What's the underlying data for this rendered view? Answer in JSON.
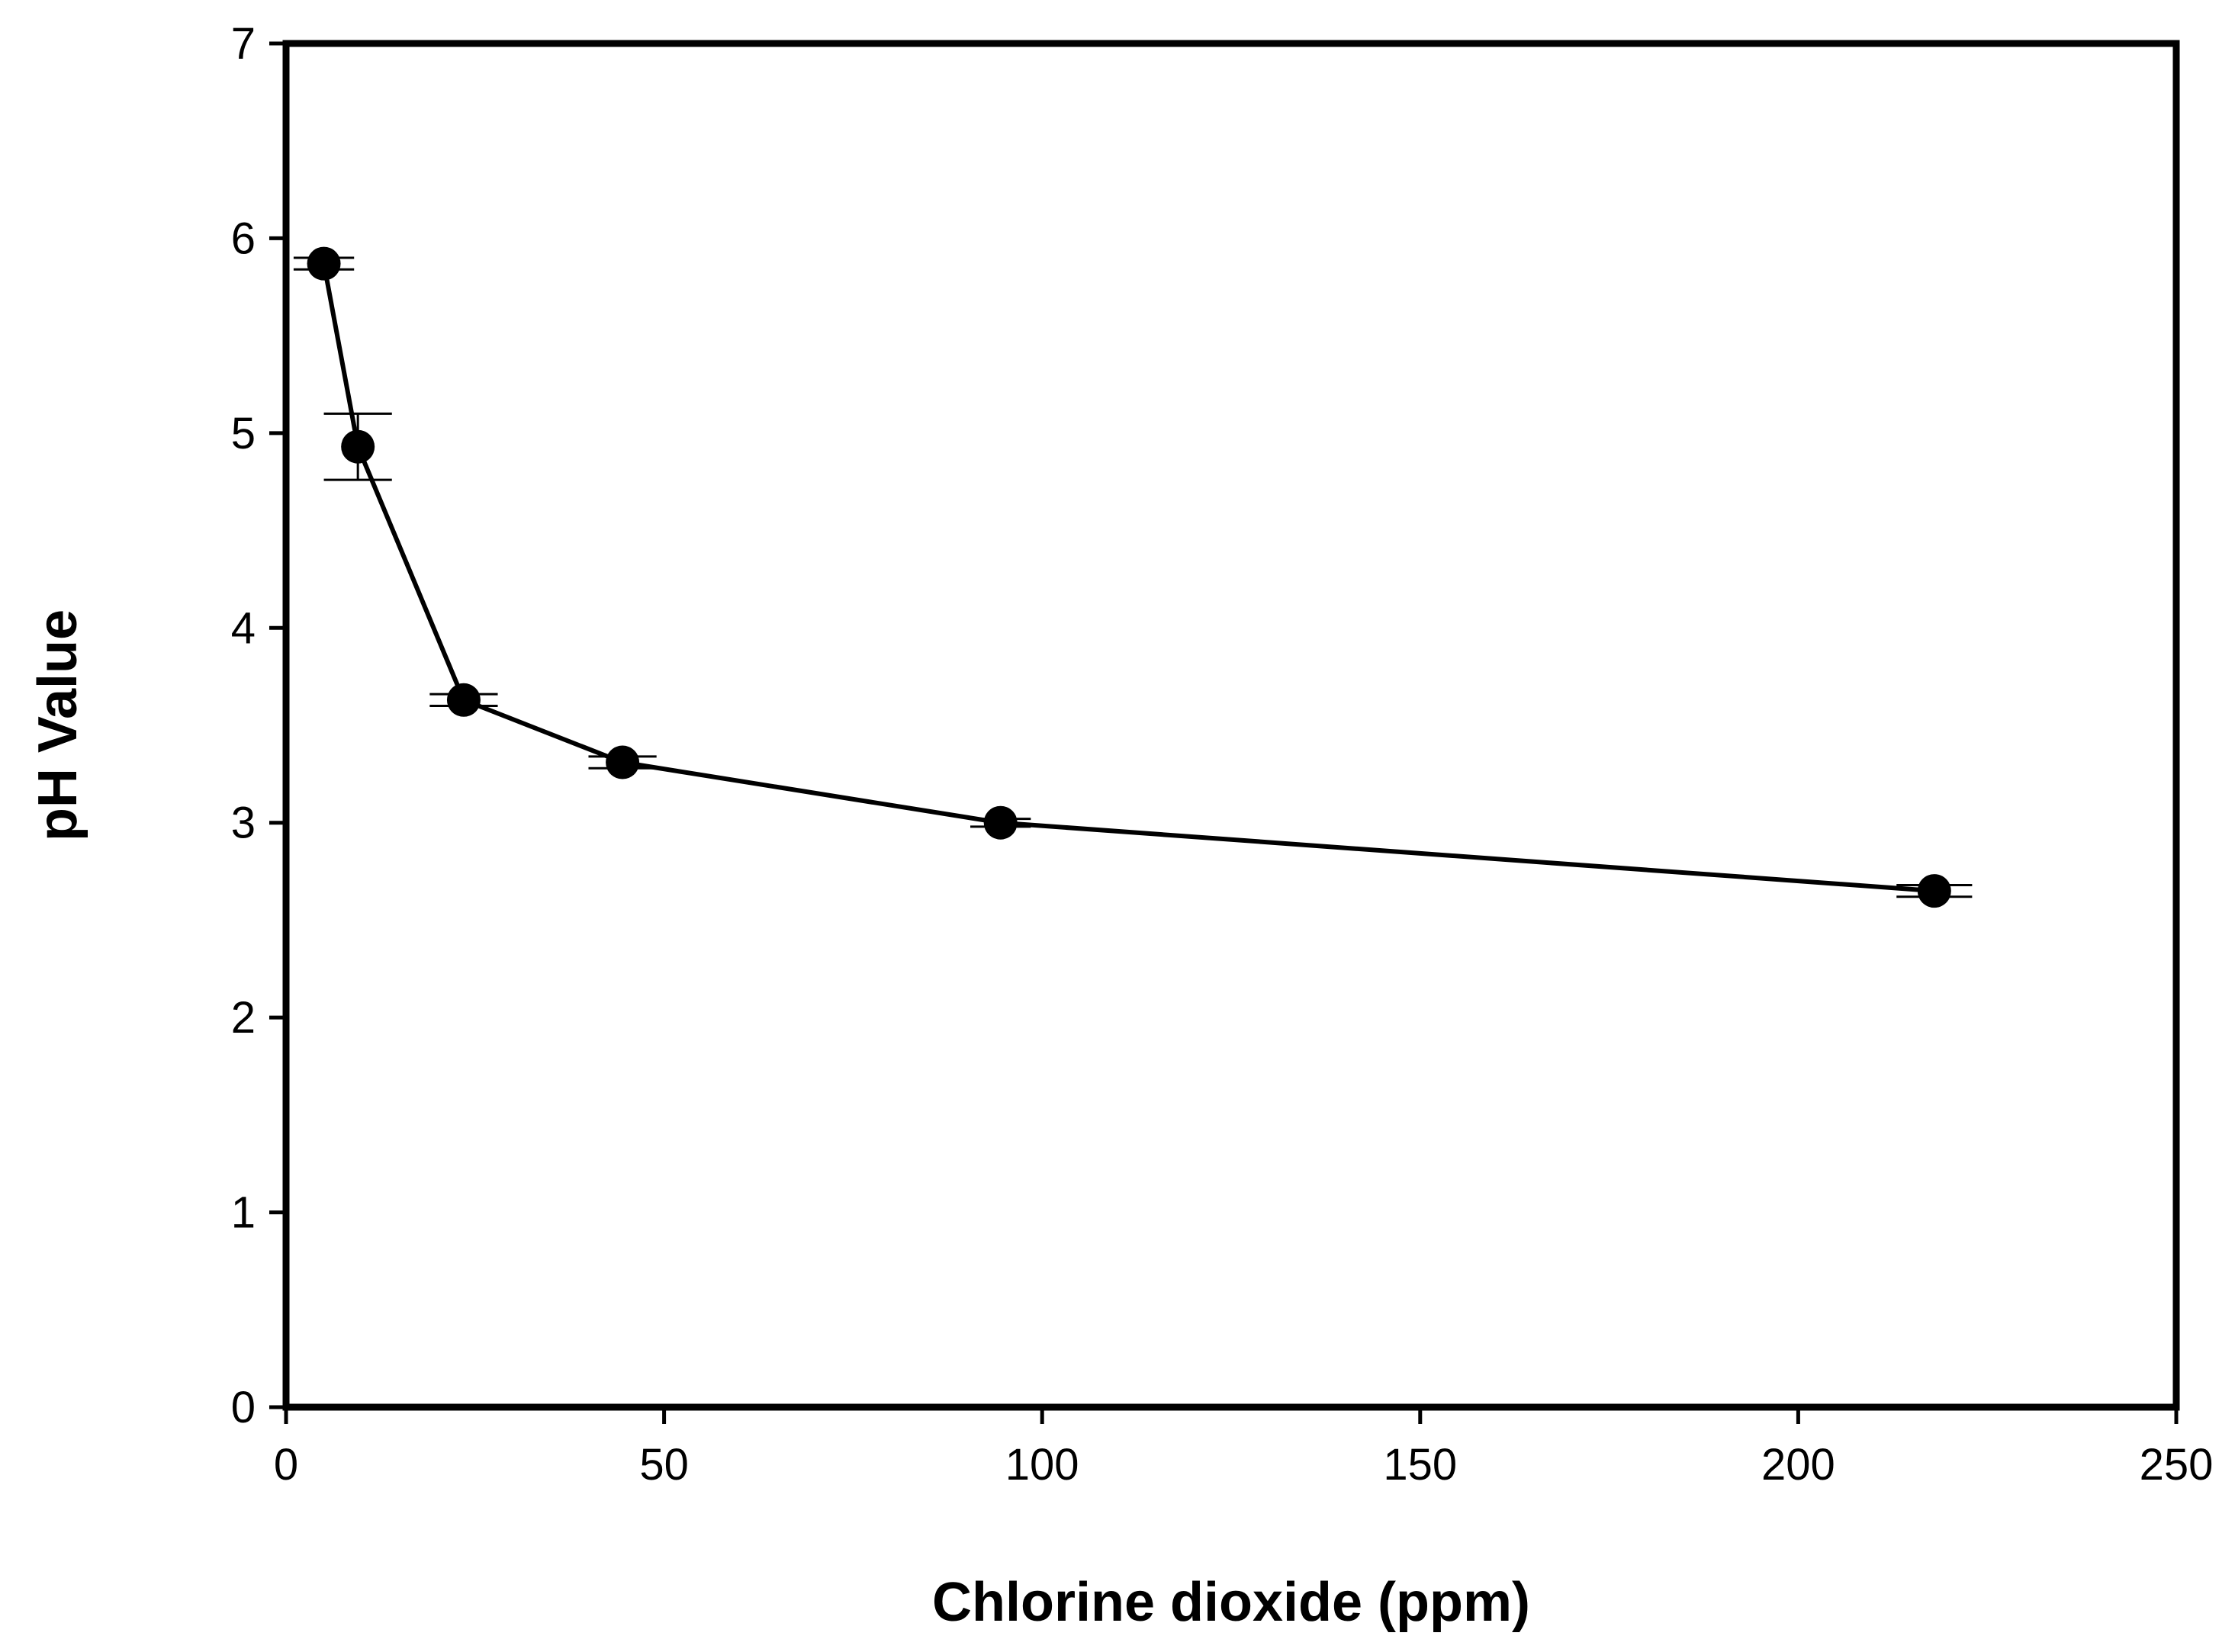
{
  "chart_data": {
    "type": "scatter",
    "title": "",
    "xlabel": "Chlorine dioxide (ppm)",
    "ylabel": "pH Value",
    "xlim": [
      0,
      250
    ],
    "ylim": [
      0,
      7
    ],
    "xticks": [
      0,
      50,
      100,
      150,
      200,
      250
    ],
    "yticks": [
      0,
      1,
      2,
      3,
      4,
      5,
      6,
      7
    ],
    "grid": false,
    "legend": "none",
    "series": [
      {
        "connected": true,
        "marker": "filled-circle",
        "color": "#000000",
        "points": [
          {
            "x": 5,
            "y": 5.87,
            "err_y": 0.03,
            "err_x": 4
          },
          {
            "x": 9.5,
            "y": 4.93,
            "err_y": 0.17,
            "err_x": 4.5
          },
          {
            "x": 23.5,
            "y": 3.63,
            "err_y": 0.03,
            "err_x": 4.5
          },
          {
            "x": 44.5,
            "y": 3.31,
            "err_y": 0.03,
            "err_x": 4.5
          },
          {
            "x": 94.5,
            "y": 3.0,
            "err_y": 0.02,
            "err_x": 4
          },
          {
            "x": 218,
            "y": 2.65,
            "err_y": 0.03,
            "err_x": 5
          }
        ]
      }
    ]
  }
}
